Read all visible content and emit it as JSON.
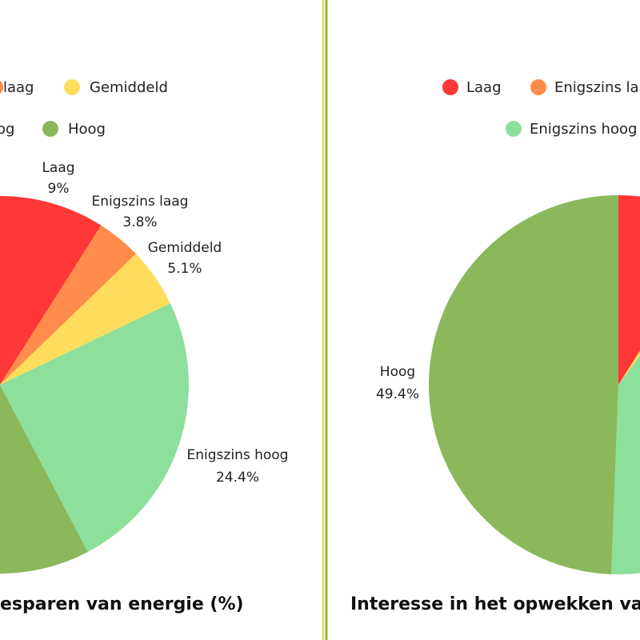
{
  "divider_colors": [
    "#f2dc6b",
    "#8cb85c"
  ],
  "chart_data": [
    {
      "type": "pie",
      "title": "esparen van energie (%)",
      "legend": {
        "rows": [
          [
            {
              "label": "laag",
              "color": "#ff8c4a"
            },
            {
              "label": "Gemiddeld",
              "color": "#ffdd5c"
            }
          ],
          [
            {
              "label": "og",
              "color": "#8de09b"
            },
            {
              "label": "Hoog",
              "color": "#8cb85c"
            }
          ]
        ]
      },
      "slices": [
        {
          "name": "Laag",
          "value_label": "9%",
          "value": 9,
          "color": "#ff3737"
        },
        {
          "name": "Enigszins laag",
          "value_label": "3.8%",
          "value": 3.8,
          "color": "#ff8c4a"
        },
        {
          "name": "Gemiddeld",
          "value_label": "5.1%",
          "value": 5.1,
          "color": "#ffdd5c"
        },
        {
          "name": "Enigszins hoog",
          "value_label": "24.4%",
          "value": 24.4,
          "color": "#8de09b"
        },
        {
          "name": "",
          "value_label": "",
          "value": 57.7,
          "color": "#8cb85c"
        }
      ]
    },
    {
      "type": "pie",
      "title": "Interesse in het opwekken va",
      "legend": {
        "rows": [
          [
            {
              "label": "Laag",
              "color": "#ff3737"
            },
            {
              "label": "Enigszins laa",
              "color": "#ff8c4a"
            }
          ],
          [
            {
              "label": "Enigszins hoog",
              "color": "#8de09b"
            }
          ]
        ]
      },
      "slices": [
        {
          "name": "",
          "value_label": "",
          "value": 9,
          "color": "#ff3737"
        },
        {
          "name": "",
          "value_label": "",
          "value": 1.2,
          "color": "#ffdd5c"
        },
        {
          "name": "",
          "value_label": "",
          "value": 40.4,
          "color": "#8de09b"
        },
        {
          "name": "Hoog",
          "value_label": "49.4%",
          "value": 49.4,
          "color": "#8cb85c"
        }
      ]
    }
  ]
}
